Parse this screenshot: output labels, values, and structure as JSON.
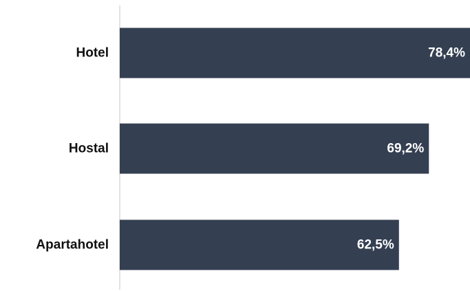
{
  "chart_data": {
    "type": "bar",
    "orientation": "horizontal",
    "categories": [
      "Hotel",
      "Hostal",
      "Apartahotel"
    ],
    "values": [
      78.4,
      69.2,
      62.5
    ],
    "value_labels": [
      "78,4%",
      "69,2%",
      "62,5%"
    ],
    "xlim": [
      0,
      78.4
    ],
    "grid": false,
    "legend": "none",
    "bar_color": "#343f51",
    "axis_color": "#d9d9d9"
  }
}
